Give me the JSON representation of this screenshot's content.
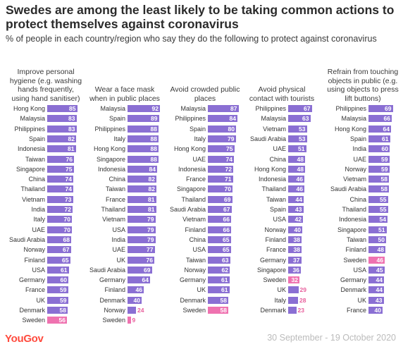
{
  "header": {
    "title": "Swedes are among the least likely to be taking common actions to protect themselves against coronavirus",
    "subtitle": "% of people in each country/region who say they do the following to protect against coronavirus"
  },
  "footer": {
    "logo": "YouGov",
    "date_range": "30 September - 19 October 2020"
  },
  "colors": {
    "bar": "#8a6fd3",
    "highlight": "#ef72b0"
  },
  "chart_data": [
    {
      "type": "bar",
      "orientation": "horizontal",
      "title": "Improve personal hygiene (e.g. washing hands frequently, using hand sanitiser)",
      "highlight": "Sweden",
      "categories": [
        "Hong Kong",
        "Malaysia",
        "Philippines",
        "Spain",
        "Indonesia",
        "Taiwan",
        "Singapore",
        "China",
        "Thailand",
        "Vietnam",
        "India",
        "Italy",
        "UAE",
        "Saudi Arabia",
        "Norway",
        "Finland",
        "USA",
        "Germany",
        "France",
        "UK",
        "Denmark",
        "Sweden"
      ],
      "values": [
        85,
        83,
        83,
        82,
        81,
        76,
        75,
        74,
        74,
        73,
        72,
        70,
        70,
        68,
        67,
        65,
        61,
        60,
        59,
        59,
        58,
        56
      ]
    },
    {
      "type": "bar",
      "orientation": "horizontal",
      "title": "Wear a face mask when in public places",
      "highlight": "Sweden",
      "categories": [
        "Malaysia",
        "Spain",
        "Philippines",
        "Italy",
        "Hong Kong",
        "Singapore",
        "Indonesia",
        "China",
        "Taiwan",
        "France",
        "Thailand",
        "Vietnam",
        "USA",
        "India",
        "UAE",
        "UK",
        "Saudi Arabia",
        "Germany",
        "Finland",
        "Denmark",
        "Norway",
        "Sweden"
      ],
      "values": [
        92,
        89,
        88,
        88,
        88,
        88,
        84,
        82,
        82,
        81,
        81,
        79,
        79,
        79,
        77,
        76,
        69,
        64,
        46,
        40,
        24,
        9
      ]
    },
    {
      "type": "bar",
      "orientation": "horizontal",
      "title": "Avoid crowded public places",
      "highlight": "Sweden",
      "categories": [
        "Malaysia",
        "Philippines",
        "Spain",
        "Italy",
        "Hong Kong",
        "UAE",
        "Indonesia",
        "France",
        "Singapore",
        "Thailand",
        "Saudi Arabia",
        "Vietnam",
        "Finland",
        "China",
        "USA",
        "Taiwan",
        "Norway",
        "Germany",
        "UK",
        "Denmark",
        "Sweden"
      ],
      "values": [
        87,
        84,
        80,
        79,
        75,
        74,
        72,
        71,
        70,
        69,
        67,
        66,
        66,
        65,
        65,
        63,
        62,
        61,
        61,
        58,
        58
      ]
    },
    {
      "type": "bar",
      "orientation": "horizontal",
      "title": "Avoid physical contact with tourists",
      "highlight": "Sweden",
      "categories": [
        "Philippines",
        "Malaysia",
        "Vietnam",
        "Saudi Arabia",
        "UAE",
        "China",
        "Hong Kong",
        "Indonesia",
        "Thailand",
        "Taiwan",
        "Spain",
        "USA",
        "Norway",
        "Finland",
        "France",
        "Germany",
        "Singapore",
        "Sweden",
        "UK",
        "Italy",
        "Denmark"
      ],
      "values": [
        67,
        63,
        53,
        53,
        51,
        48,
        48,
        46,
        46,
        44,
        43,
        42,
        40,
        38,
        38,
        37,
        36,
        32,
        29,
        28,
        23
      ]
    },
    {
      "type": "bar",
      "orientation": "horizontal",
      "title": "Refrain from touching objects in public (e.g. using objects to press lift buttons)",
      "highlight": "Sweden",
      "categories": [
        "Philippines",
        "Malaysia",
        "Hong Kong",
        "Spain",
        "India",
        "UAE",
        "Norway",
        "Vietnam",
        "Saudi Arabia",
        "China",
        "Thailand",
        "Indonesia",
        "Singapore",
        "Taiwan",
        "Finland",
        "Sweden",
        "USA",
        "Germany",
        "Denmark",
        "UK",
        "France"
      ],
      "values": [
        69,
        66,
        64,
        61,
        60,
        59,
        59,
        58,
        58,
        55,
        55,
        54,
        51,
        50,
        48,
        46,
        45,
        44,
        44,
        43,
        40
      ]
    }
  ]
}
